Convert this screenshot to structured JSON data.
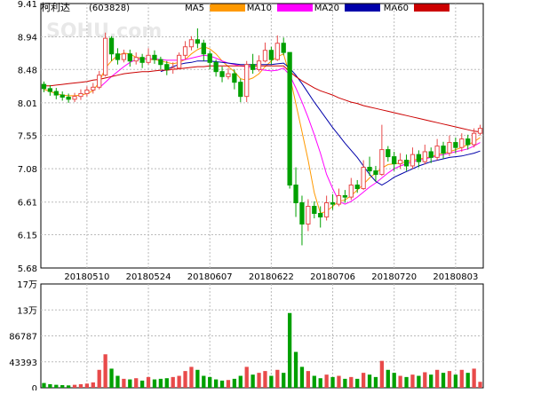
{
  "stock": {
    "name": "柯利达",
    "code": "(603828)"
  },
  "watermark": "SOHU.com",
  "legend": [
    {
      "label": "MA5",
      "color": "#ff9900"
    },
    {
      "label": "MA10",
      "color": "#ff00ff"
    },
    {
      "label": "MA20",
      "color": "#0000aa"
    },
    {
      "label": "MA60",
      "color": "#cc0000"
    }
  ],
  "colors": {
    "up": "#e84a4a",
    "down": "#00a000",
    "grid": "#bbbbbb",
    "axis": "#000000"
  },
  "chart_data": [
    {
      "type": "candlestick",
      "y_ticks": [
        "9.41",
        "8.94",
        "8.48",
        "8.01",
        "7.55",
        "7.08",
        "6.61",
        "6.15",
        "5.68"
      ],
      "ylim": [
        5.68,
        9.41
      ],
      "x_labels": [
        "20180510",
        "20180524",
        "20180607",
        "20180622",
        "20180706",
        "20180720",
        "20180803"
      ],
      "x_label_index": [
        7,
        17,
        27,
        37,
        47,
        57,
        67
      ],
      "candles": [
        [
          8.27,
          8.21,
          8.31,
          8.16
        ],
        [
          8.21,
          8.17,
          8.26,
          8.11
        ],
        [
          8.17,
          8.12,
          8.22,
          8.06
        ],
        [
          8.12,
          8.09,
          8.17,
          8.04
        ],
        [
          8.09,
          8.06,
          8.14,
          8.01
        ],
        [
          8.06,
          8.1,
          8.15,
          8.02
        ],
        [
          8.1,
          8.14,
          8.2,
          8.05
        ],
        [
          8.14,
          8.19,
          8.24,
          8.1
        ],
        [
          8.19,
          8.23,
          8.29,
          8.14
        ],
        [
          8.23,
          8.4,
          8.46,
          8.2
        ],
        [
          8.4,
          8.92,
          9.0,
          8.38
        ],
        [
          8.92,
          8.7,
          8.95,
          8.6
        ],
        [
          8.7,
          8.62,
          8.78,
          8.55
        ],
        [
          8.62,
          8.7,
          8.76,
          8.58
        ],
        [
          8.7,
          8.6,
          8.76,
          8.52
        ],
        [
          8.6,
          8.65,
          8.72,
          8.55
        ],
        [
          8.65,
          8.58,
          8.7,
          8.5
        ],
        [
          8.58,
          8.68,
          8.78,
          8.55
        ],
        [
          8.68,
          8.62,
          8.75,
          8.56
        ],
        [
          8.62,
          8.55,
          8.66,
          8.48
        ],
        [
          8.55,
          8.48,
          8.6,
          8.4
        ],
        [
          8.48,
          8.5,
          8.58,
          8.42
        ],
        [
          8.5,
          8.68,
          8.72,
          8.48
        ],
        [
          8.68,
          8.8,
          8.88,
          8.62
        ],
        [
          8.8,
          8.9,
          8.95,
          8.75
        ],
        [
          8.9,
          8.85,
          9.06,
          8.78
        ],
        [
          8.85,
          8.7,
          8.9,
          8.6
        ],
        [
          8.7,
          8.58,
          8.74,
          8.48
        ],
        [
          8.58,
          8.45,
          8.62,
          8.38
        ],
        [
          8.45,
          8.38,
          8.52,
          8.3
        ],
        [
          8.38,
          8.42,
          8.5,
          8.34
        ],
        [
          8.42,
          8.3,
          8.48,
          8.2
        ],
        [
          8.3,
          8.1,
          8.35,
          8.02
        ],
        [
          8.1,
          8.55,
          8.6,
          8.02
        ],
        [
          8.55,
          8.48,
          8.7,
          8.42
        ],
        [
          8.48,
          8.6,
          8.68,
          8.45
        ],
        [
          8.6,
          8.75,
          8.86,
          8.58
        ],
        [
          8.75,
          8.62,
          8.8,
          8.55
        ],
        [
          8.62,
          8.85,
          8.96,
          8.6
        ],
        [
          8.85,
          8.72,
          8.93,
          8.68
        ],
        [
          8.72,
          6.85,
          6.9,
          6.8
        ],
        [
          6.85,
          6.6,
          7.1,
          6.4
        ],
        [
          6.6,
          6.3,
          6.7,
          6.0
        ],
        [
          6.3,
          6.55,
          6.65,
          6.2
        ],
        [
          6.55,
          6.45,
          6.62,
          6.38
        ],
        [
          6.45,
          6.4,
          6.55,
          6.25
        ],
        [
          6.4,
          6.6,
          6.7,
          6.35
        ],
        [
          6.6,
          6.58,
          6.72,
          6.5
        ],
        [
          6.58,
          6.7,
          6.8,
          6.55
        ],
        [
          6.7,
          6.68,
          6.78,
          6.6
        ],
        [
          6.68,
          6.85,
          6.95,
          6.64
        ],
        [
          6.85,
          6.8,
          6.92,
          6.74
        ],
        [
          6.8,
          7.1,
          7.2,
          6.78
        ],
        [
          7.1,
          7.05,
          7.25,
          6.98
        ],
        [
          7.05,
          7.0,
          7.12,
          6.9
        ],
        [
          7.0,
          7.35,
          7.7,
          6.98
        ],
        [
          7.35,
          7.25,
          7.4,
          7.18
        ],
        [
          7.25,
          7.15,
          7.32,
          7.05
        ],
        [
          7.15,
          7.2,
          7.3,
          7.08
        ],
        [
          7.2,
          7.12,
          7.28,
          7.05
        ],
        [
          7.12,
          7.28,
          7.38,
          7.08
        ],
        [
          7.28,
          7.18,
          7.34,
          7.1
        ],
        [
          7.18,
          7.32,
          7.42,
          7.14
        ],
        [
          7.32,
          7.24,
          7.38,
          7.16
        ],
        [
          7.24,
          7.4,
          7.5,
          7.2
        ],
        [
          7.4,
          7.3,
          7.46,
          7.22
        ],
        [
          7.3,
          7.45,
          7.55,
          7.26
        ],
        [
          7.45,
          7.38,
          7.52,
          7.3
        ],
        [
          7.38,
          7.5,
          7.58,
          7.32
        ],
        [
          7.5,
          7.42,
          7.56,
          7.35
        ],
        [
          7.42,
          7.58,
          7.65,
          7.38
        ],
        [
          7.58,
          7.65,
          7.7,
          7.55
        ]
      ],
      "ma5": [
        8.2,
        8.17,
        8.14,
        8.12,
        8.11,
        8.11,
        8.12,
        8.14,
        8.18,
        8.3,
        8.5,
        8.6,
        8.68,
        8.71,
        8.7,
        8.65,
        8.64,
        8.62,
        8.62,
        8.6,
        8.58,
        8.56,
        8.58,
        8.62,
        8.7,
        8.76,
        8.8,
        8.77,
        8.7,
        8.6,
        8.52,
        8.45,
        8.35,
        8.33,
        8.36,
        8.42,
        8.52,
        8.6,
        8.66,
        8.7,
        8.4,
        8.0,
        7.6,
        7.2,
        6.74,
        6.45,
        6.48,
        6.55,
        6.62,
        6.64,
        6.7,
        6.78,
        6.86,
        6.95,
        7.02,
        7.09,
        7.14,
        7.15,
        7.16,
        7.18,
        7.2,
        7.22,
        7.23,
        7.25,
        7.28,
        7.3,
        7.32,
        7.35,
        7.38,
        7.42,
        7.46,
        7.52
      ],
      "ma10": [
        null,
        null,
        null,
        null,
        null,
        null,
        null,
        null,
        null,
        8.22,
        8.3,
        8.38,
        8.45,
        8.52,
        8.58,
        8.62,
        8.63,
        8.63,
        8.63,
        8.62,
        8.61,
        8.61,
        8.61,
        8.62,
        8.64,
        8.66,
        8.68,
        8.67,
        8.64,
        8.6,
        8.57,
        8.55,
        8.53,
        8.52,
        8.5,
        8.48,
        8.47,
        8.46,
        8.47,
        8.5,
        8.4,
        8.22,
        8.02,
        7.8,
        7.56,
        7.3,
        7.0,
        6.8,
        6.62,
        6.58,
        6.62,
        6.68,
        6.75,
        6.82,
        6.88,
        6.95,
        7.02,
        7.08,
        7.12,
        7.15,
        7.18,
        7.2,
        7.22,
        7.24,
        7.26,
        7.28,
        7.3,
        7.32,
        7.34,
        7.36,
        7.4,
        7.45
      ],
      "ma20": [
        null,
        null,
        null,
        null,
        null,
        null,
        null,
        null,
        null,
        null,
        null,
        null,
        null,
        null,
        null,
        null,
        null,
        null,
        null,
        8.45,
        8.48,
        8.52,
        8.55,
        8.57,
        8.58,
        8.6,
        8.6,
        8.6,
        8.59,
        8.58,
        8.57,
        8.56,
        8.55,
        8.55,
        8.55,
        8.55,
        8.55,
        8.55,
        8.56,
        8.57,
        8.5,
        8.4,
        8.28,
        8.15,
        8.02,
        7.9,
        7.78,
        7.66,
        7.55,
        7.44,
        7.34,
        7.24,
        7.12,
        7.0,
        6.9,
        6.85,
        6.9,
        6.96,
        7.0,
        7.04,
        7.08,
        7.12,
        7.15,
        7.18,
        7.2,
        7.22,
        7.24,
        7.25,
        7.26,
        7.28,
        7.3,
        7.33
      ],
      "ma60": [
        8.25,
        8.25,
        8.26,
        8.27,
        8.28,
        8.29,
        8.3,
        8.31,
        8.33,
        8.34,
        8.36,
        8.38,
        8.4,
        8.42,
        8.43,
        8.44,
        8.45,
        8.45,
        8.46,
        8.47,
        8.47,
        8.48,
        8.49,
        8.5,
        8.51,
        8.52,
        8.52,
        8.53,
        8.53,
        8.53,
        8.53,
        8.53,
        8.53,
        8.53,
        8.53,
        8.53,
        8.53,
        8.53,
        8.53,
        8.53,
        8.45,
        8.38,
        8.32,
        8.27,
        8.22,
        8.18,
        8.15,
        8.12,
        8.08,
        8.05,
        8.02,
        8.0,
        7.97,
        7.95,
        7.93,
        7.91,
        7.89,
        7.87,
        7.85,
        7.83,
        7.81,
        7.79,
        7.77,
        7.75,
        7.73,
        7.71,
        7.69,
        7.67,
        7.65,
        7.63,
        7.61,
        7.6
      ]
    },
    {
      "type": "bar",
      "y_ticks": [
        "17万",
        "13万",
        "86787",
        "43393",
        "0"
      ],
      "y_tick_values": [
        173574,
        130180,
        86787,
        43393,
        0
      ],
      "ylim": [
        0,
        173574
      ],
      "volumes": [
        8000,
        6000,
        5000,
        4500,
        4000,
        5000,
        6000,
        7000,
        9000,
        30000,
        56000,
        32000,
        20000,
        15000,
        14000,
        16000,
        12000,
        18000,
        14000,
        15000,
        16000,
        18000,
        20000,
        28000,
        35000,
        30000,
        20000,
        18000,
        14000,
        12000,
        13000,
        15000,
        20000,
        35000,
        22000,
        25000,
        28000,
        20000,
        30000,
        25000,
        125000,
        60000,
        35000,
        28000,
        20000,
        16000,
        22000,
        18000,
        20000,
        15000,
        18000,
        15000,
        25000,
        22000,
        18000,
        45000,
        30000,
        25000,
        20000,
        18000,
        22000,
        20000,
        26000,
        22000,
        30000,
        25000,
        28000,
        22000,
        30000,
        25000,
        32000,
        10000
      ]
    }
  ]
}
